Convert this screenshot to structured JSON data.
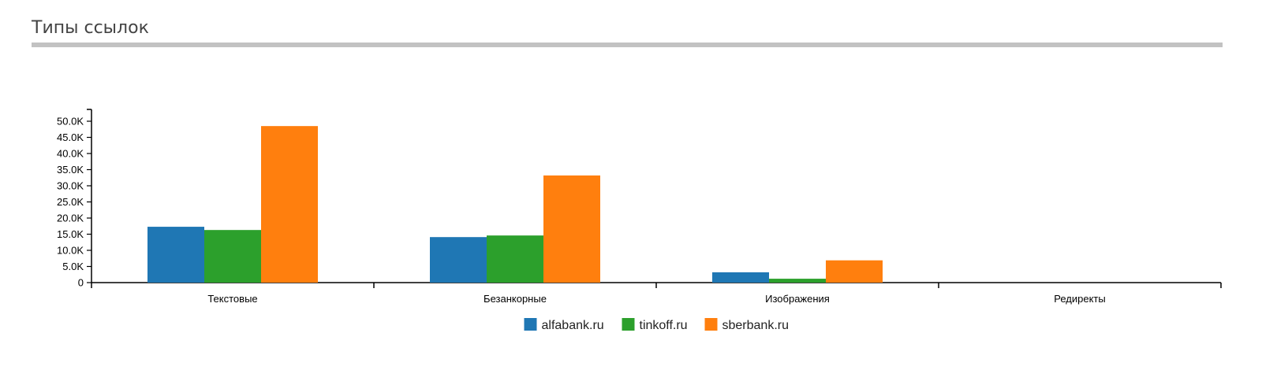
{
  "section": {
    "title": "Типы ссылок"
  },
  "chart_data": {
    "type": "bar",
    "title": "",
    "xlabel": "",
    "ylabel": "",
    "categories": [
      "Текстовые",
      "Безанкорные",
      "Изображения",
      "Редиректы"
    ],
    "series": [
      {
        "name": "alfabank.ru",
        "color": "#1f77b4",
        "values": [
          17300,
          14100,
          3200,
          0
        ]
      },
      {
        "name": "tinkoff.ru",
        "color": "#2ca02c",
        "values": [
          16300,
          14600,
          1200,
          0
        ]
      },
      {
        "name": "sberbank.ru",
        "color": "#ff7f0e",
        "values": [
          48500,
          33200,
          6900,
          0
        ]
      }
    ],
    "ylim": [
      0,
      53000
    ],
    "yticks": [
      0,
      5000,
      10000,
      15000,
      20000,
      25000,
      30000,
      35000,
      40000,
      45000,
      50000
    ],
    "ytick_labels": [
      "0",
      "5.0K",
      "10.0K",
      "15.0K",
      "20.0K",
      "25.0K",
      "30.0K",
      "35.0K",
      "40.0K",
      "45.0K",
      "50.0K"
    ],
    "grid": false,
    "legend_position": "bottom-center"
  }
}
